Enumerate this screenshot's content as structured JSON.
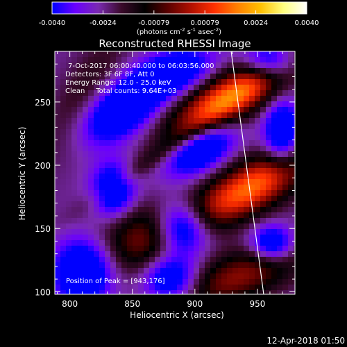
{
  "colorbar": {
    "ticks": [
      "-0.0040",
      "-0.0024",
      "-0.00079",
      "0.00079",
      "0.0024",
      "0.0040"
    ],
    "units_main": "(photons cm",
    "units_exp1": "-2",
    "units_s": " s",
    "units_exp2": "-1",
    "units_asec": " asec",
    "units_exp3": "-2",
    "units_close": ")",
    "colors": [
      "#0000ff",
      "#6a00ff",
      "#7a2ab0",
      "#3a0a2a",
      "#000000",
      "#5a0000",
      "#b01000",
      "#ff3000",
      "#ff8000",
      "#ffc000",
      "#ffff80",
      "#ffffff"
    ]
  },
  "image": {
    "title": "Reconstructed RHESSI Image",
    "info_lines": [
      "7-Oct-2017 06:00:40.000 to 06:03:56.000",
      "Detectors: 3F 6F 8F, Att 0",
      "Energy Range: 12.0 - 25.0 keV",
      "Clean     Total counts: 9.64E+03"
    ],
    "peak_label": "Position of Peak = [943,176]",
    "footer_timestamp": "12-Apr-2018 01:50"
  },
  "chart_data": {
    "type": "heatmap",
    "title": "Reconstructed RHESSI Image",
    "xlabel": "Heliocentric X (arcsec)",
    "ylabel": "Heliocentric Y (arcsec)",
    "xlim": [
      788,
      980
    ],
    "ylim": [
      98,
      290
    ],
    "x_ticks": [
      800,
      850,
      900,
      950
    ],
    "y_ticks": [
      100,
      150,
      200,
      250
    ],
    "x_tick_labels": [
      "800",
      "850",
      "900",
      "950"
    ],
    "y_tick_labels": [
      "100",
      "150",
      "200",
      "250"
    ],
    "peak_position": [
      943,
      176
    ],
    "limb_line": [
      [
        929,
        290
      ],
      [
        955,
        98
      ]
    ],
    "blobs": [
      {
        "x": 928,
        "y": 254,
        "sx": 38,
        "sy": 13,
        "angle_deg": 28,
        "amp": 0.0042
      },
      {
        "x": 944,
        "y": 182,
        "sx": 40,
        "sy": 14,
        "angle_deg": 28,
        "amp": 0.004
      },
      {
        "x": 856,
        "y": 140,
        "sx": 20,
        "sy": 22,
        "angle_deg": 55,
        "amp": 0.0021
      },
      {
        "x": 935,
        "y": 112,
        "sx": 40,
        "sy": 14,
        "angle_deg": 20,
        "amp": 0.0024
      },
      {
        "x": 868,
        "y": 207,
        "sx": 52,
        "sy": 6,
        "angle_deg": 35,
        "amp": 0.0009
      },
      {
        "x": 812,
        "y": 255,
        "sx": 14,
        "sy": 40,
        "angle_deg": -30,
        "amp": 0.001
      },
      {
        "x": 835,
        "y": 180,
        "sx": 12,
        "sy": 15,
        "angle_deg": 0,
        "amp": -0.003
      },
      {
        "x": 810,
        "y": 115,
        "sx": 16,
        "sy": 18,
        "angle_deg": 0,
        "amp": -0.0032
      },
      {
        "x": 890,
        "y": 150,
        "sx": 14,
        "sy": 14,
        "angle_deg": 0,
        "amp": -0.0032
      },
      {
        "x": 905,
        "y": 212,
        "sx": 20,
        "sy": 11,
        "angle_deg": 30,
        "amp": -0.003
      },
      {
        "x": 840,
        "y": 242,
        "sx": 24,
        "sy": 14,
        "angle_deg": 30,
        "amp": -0.0031
      },
      {
        "x": 880,
        "y": 110,
        "sx": 16,
        "sy": 14,
        "angle_deg": 0,
        "amp": -0.003
      },
      {
        "x": 962,
        "y": 138,
        "sx": 12,
        "sy": 10,
        "angle_deg": 0,
        "amp": -0.003
      },
      {
        "x": 880,
        "y": 272,
        "sx": 24,
        "sy": 12,
        "angle_deg": 20,
        "amp": -0.0029
      },
      {
        "x": 970,
        "y": 225,
        "sx": 10,
        "sy": 18,
        "angle_deg": 0,
        "amp": -0.0031
      },
      {
        "x": 960,
        "y": 282,
        "sx": 14,
        "sy": 10,
        "angle_deg": 0,
        "amp": -0.0028
      }
    ],
    "baseline": -0.0024,
    "color_range": [
      -0.004,
      0.004
    ]
  }
}
